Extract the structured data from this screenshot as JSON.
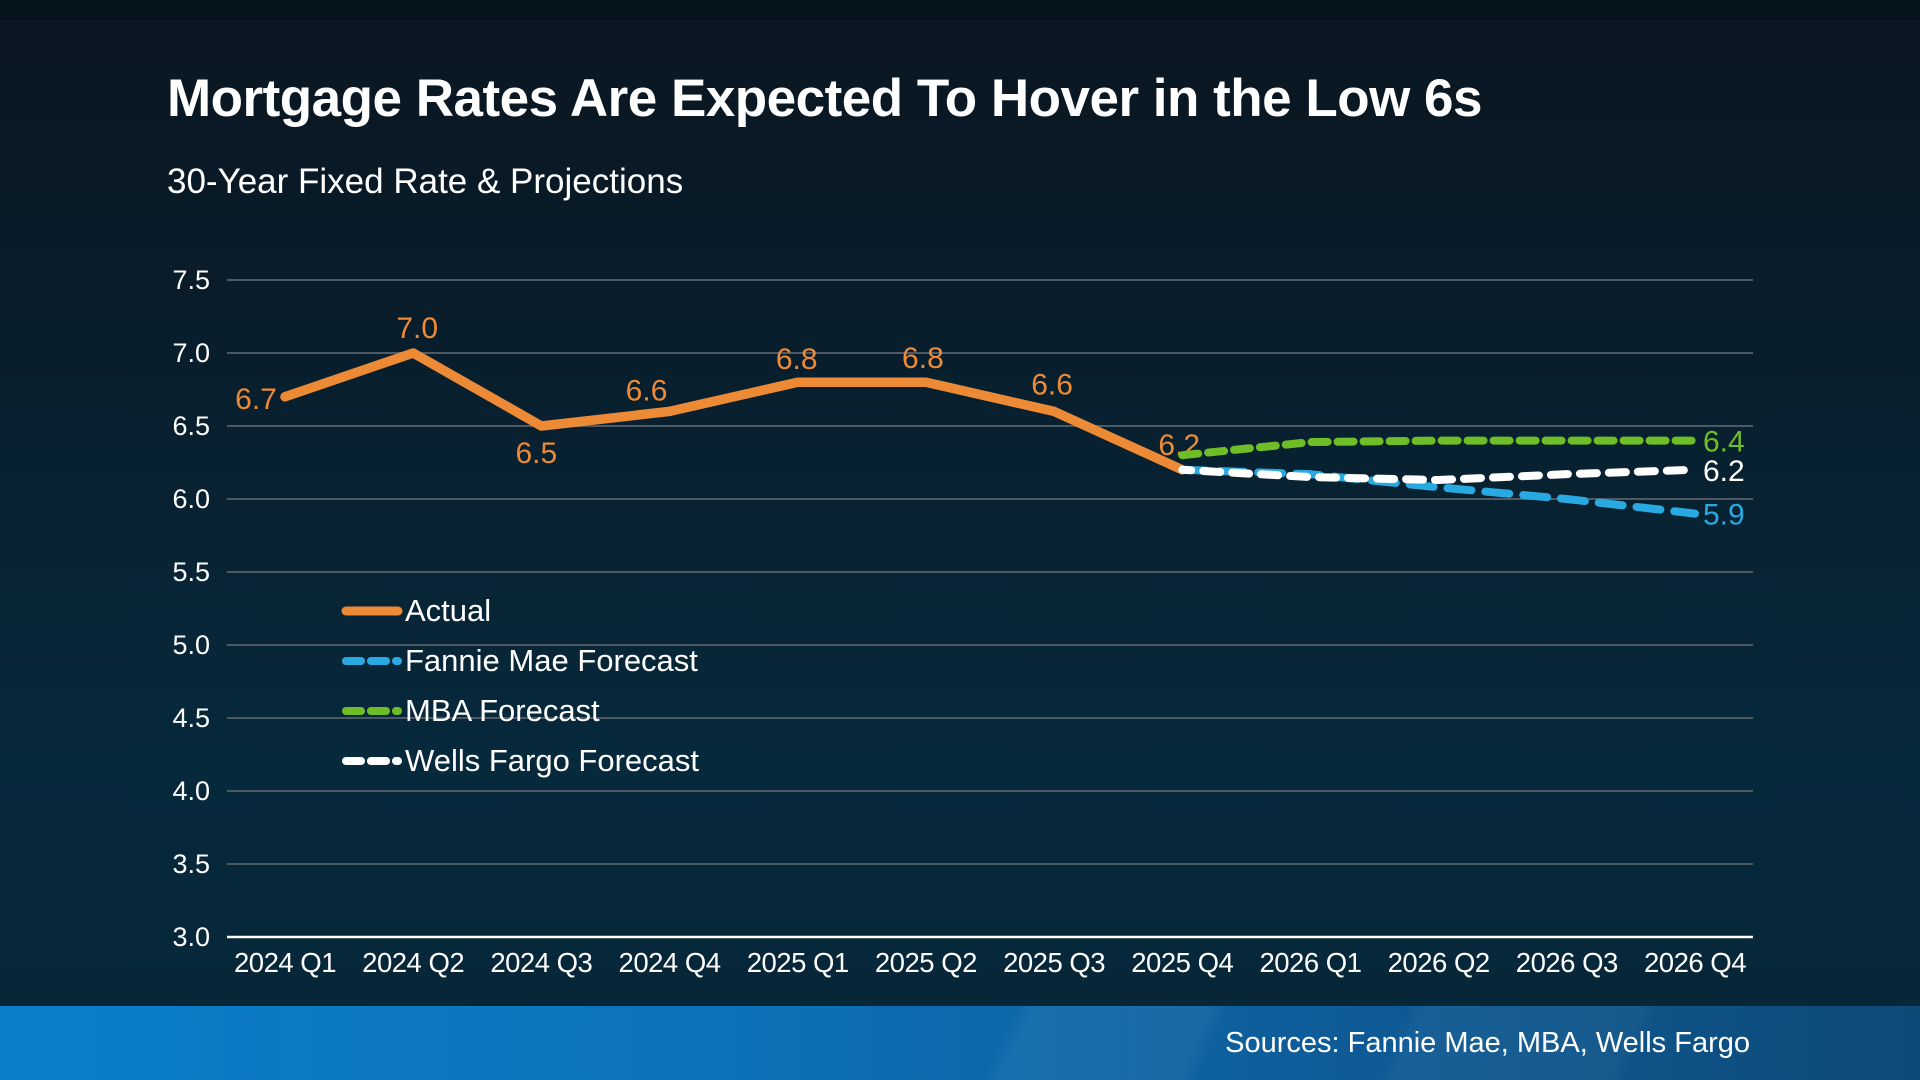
{
  "page": {
    "title": "Mortgage Rates Are Expected To Hover in the Low 6s",
    "subtitle": "30-Year Fixed Rate & Projections",
    "source_note": "Sources: Fannie Mae, MBA, Wells Fargo"
  },
  "colors": {
    "background_top": "#0A1621",
    "background_bottom": "#06293C",
    "top_strip": "#06141E",
    "gridline": "#4D5964",
    "axis_line": "#FFFFFF",
    "text": "#FFFFFF",
    "footer_gradient_left": "#0B7ECB",
    "footer_gradient_right": "#0D4A78"
  },
  "chart_data": {
    "type": "line",
    "title": "Mortgage Rates Are Expected To Hover in the Low 6s",
    "subtitle": "30-Year Fixed Rate & Projections",
    "xlabel": "",
    "ylabel": "",
    "categories": [
      "2024 Q1",
      "2024 Q2",
      "2024 Q3",
      "2024 Q4",
      "2025 Q1",
      "2025 Q2",
      "2025 Q3",
      "2025 Q4",
      "2026 Q1",
      "2026 Q2",
      "2026 Q3",
      "2026 Q4"
    ],
    "ylim": [
      3.0,
      7.5
    ],
    "ytick_step": 0.5,
    "yticks": [
      "3.0",
      "3.5",
      "4.0",
      "4.5",
      "5.0",
      "5.5",
      "6.0",
      "6.5",
      "7.0",
      "7.5"
    ],
    "grid": true,
    "legend_position": "inside-left",
    "series": [
      {
        "name": "Actual",
        "color": "#EC8A35",
        "line_style": "solid",
        "start_index": 0,
        "values": [
          6.7,
          7.0,
          6.5,
          6.6,
          6.8,
          6.8,
          6.6,
          6.2
        ],
        "point_labels": [
          {
            "text": "6.7",
            "dx": -29,
            "dy": 12
          },
          {
            "text": "7.0",
            "dx": 4,
            "dy": -15
          },
          {
            "text": "6.5",
            "dx": -5,
            "dy": 37
          },
          {
            "text": "6.6",
            "dx": -23,
            "dy": -11
          },
          {
            "text": "6.8",
            "dx": -1,
            "dy": -13
          },
          {
            "text": "6.8",
            "dx": -3,
            "dy": -14
          },
          {
            "text": "6.6",
            "dx": -2,
            "dy": -17
          },
          {
            "text": "6.2",
            "dx": -3,
            "dy": -15
          }
        ]
      },
      {
        "name": "Fannie Mae Forecast",
        "color": "#29A9E2",
        "line_style": "dashed",
        "dash_pattern": "24 14",
        "start_index": 7,
        "values": [
          6.2,
          6.17,
          6.08,
          6.0,
          5.9
        ],
        "end_label": "5.9"
      },
      {
        "name": "MBA Forecast",
        "color": "#6FBE28",
        "line_style": "dashed",
        "dash_pattern": "16 10",
        "start_index": 7,
        "values": [
          6.3,
          6.39,
          6.4,
          6.4,
          6.4
        ],
        "end_label": "6.4"
      },
      {
        "name": "Wells Fargo Forecast",
        "color": "#FFFFFF",
        "line_style": "dashed",
        "dash_pattern": "17 12",
        "start_index": 7,
        "values": [
          6.2,
          6.15,
          6.13,
          6.17,
          6.2
        ],
        "end_label": "6.2"
      }
    ]
  }
}
